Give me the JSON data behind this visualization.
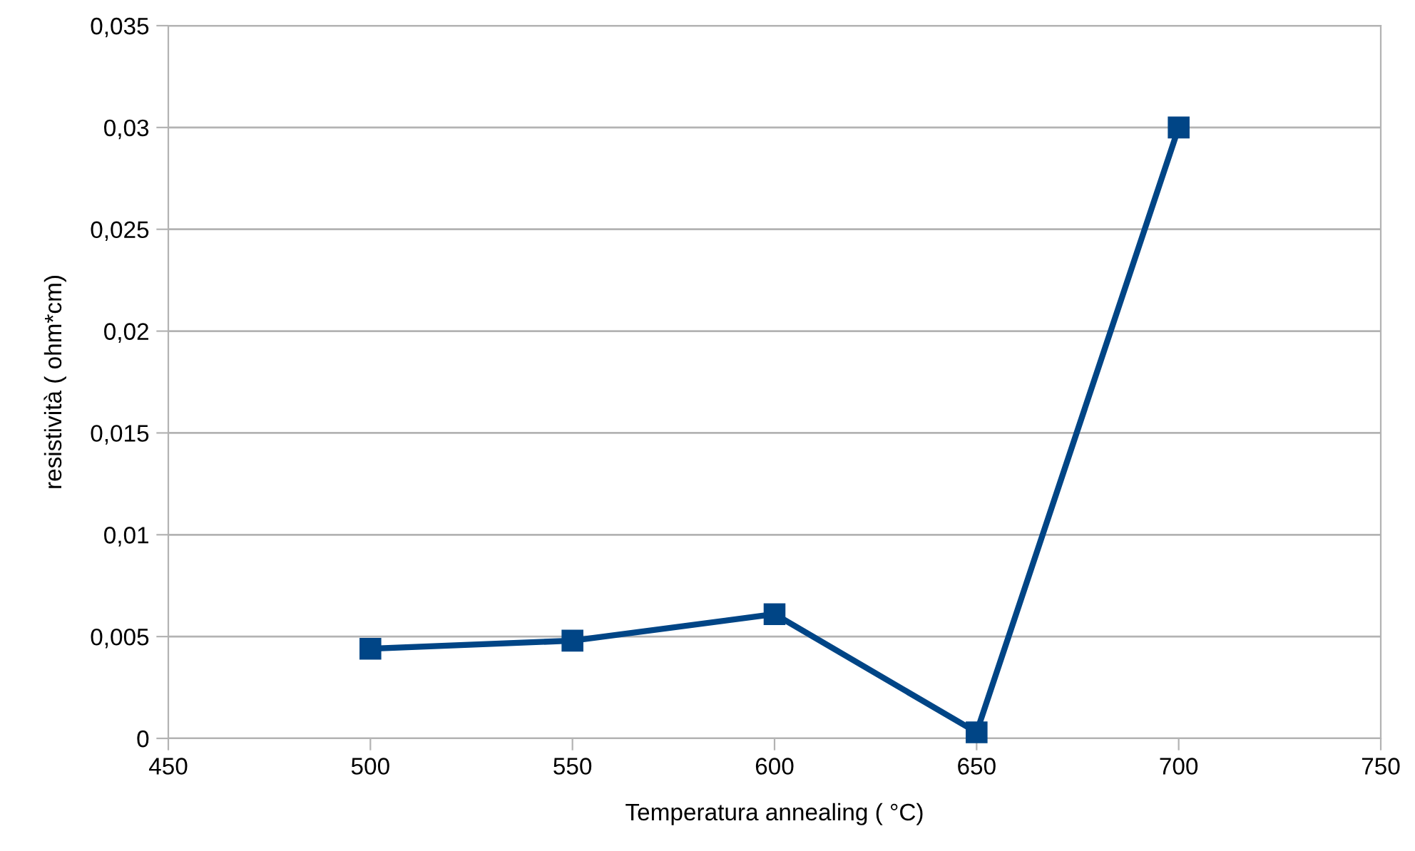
{
  "chart_data": {
    "type": "line",
    "xlabel": "Temperatura annealing ( °C)",
    "ylabel": "resistività ( ohm*cm)",
    "x": [
      500,
      550,
      600,
      650,
      700
    ],
    "series": [
      {
        "color": "#004586",
        "values": [
          0.0044,
          0.0048,
          0.0061,
          0.0003,
          0.03
        ]
      }
    ],
    "xlim": [
      450,
      750
    ],
    "xticks": [
      450,
      500,
      550,
      600,
      650,
      700,
      750
    ],
    "ylim": [
      0,
      0.035
    ],
    "yticks": [
      {
        "value": 0,
        "label": "0"
      },
      {
        "value": 0.005,
        "label": "0,005"
      },
      {
        "value": 0.01,
        "label": "0,01"
      },
      {
        "value": 0.015,
        "label": "0,015"
      },
      {
        "value": 0.02,
        "label": "0,02"
      },
      {
        "value": 0.025,
        "label": "0,025"
      },
      {
        "value": 0.03,
        "label": "0,03"
      },
      {
        "value": 0.035,
        "label": "0,035"
      }
    ],
    "grid": "y",
    "marker": "square",
    "line_style": "solid",
    "legend": false
  }
}
